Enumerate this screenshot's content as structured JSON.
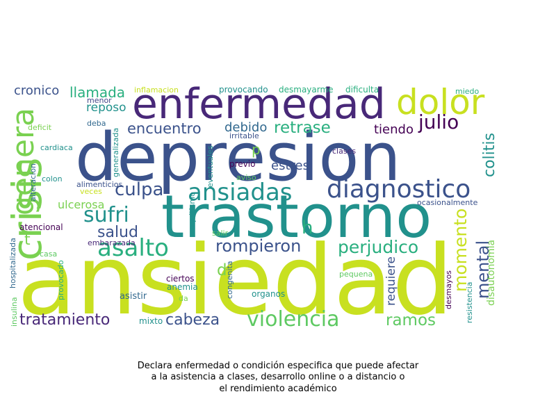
{
  "caption": {
    "line1": "Declara enfermedad o condición especifica que puede afectar",
    "line2": "a la asistencia a clases, desarrollo online o a distancio o",
    "line3": "el rendimiento académico"
  },
  "palette": {
    "navy": "#3b528b",
    "purple": "#482878",
    "dark_purple": "#440154",
    "teal": "#21918c",
    "green": "#5ec962",
    "light_green": "#7ad151",
    "yellow": "#fde725",
    "yellow_green": "#c8e020",
    "slate": "#31688e",
    "cyan": "#29af7f",
    "blue": "#414487"
  },
  "words": [
    {
      "text": "ansiedad",
      "color": "#c8e020"
    },
    {
      "text": "depresion",
      "color": "#3b528b"
    },
    {
      "text": "trastorno",
      "color": "#21918c"
    },
    {
      "text": "enfermedad",
      "color": "#482878"
    },
    {
      "text": "crisis",
      "color": "#7ad151"
    },
    {
      "text": "dolor",
      "color": "#c8e020"
    },
    {
      "text": "genera",
      "color": "#7ad151"
    },
    {
      "text": "diagnostico",
      "color": "#3b528b"
    },
    {
      "text": "ansiadas",
      "color": "#21918c"
    },
    {
      "text": "julio",
      "color": "#440154"
    },
    {
      "text": "violencia",
      "color": "#5ec962"
    },
    {
      "text": "asalto",
      "color": "#29af7f"
    },
    {
      "text": "tratamiento",
      "color": "#482878"
    },
    {
      "text": "cabeza",
      "color": "#3b528b"
    },
    {
      "text": "rompieron",
      "color": "#3b528b"
    },
    {
      "text": "perjudico",
      "color": "#29af7f"
    },
    {
      "text": "sufri",
      "color": "#21918c"
    },
    {
      "text": "encuentro",
      "color": "#3b528b"
    },
    {
      "text": "retrase",
      "color": "#29af7f"
    },
    {
      "text": "momento",
      "color": "#c8e020"
    },
    {
      "text": "mental",
      "color": "#3b528b"
    },
    {
      "text": "ramos",
      "color": "#5ec962"
    },
    {
      "text": "culpa",
      "color": "#3b528b"
    },
    {
      "text": "salud",
      "color": "#3b528b"
    },
    {
      "text": "llamada",
      "color": "#29af7f"
    },
    {
      "text": "cronico",
      "color": "#3b528b"
    },
    {
      "text": "colitis",
      "color": "#21918c"
    },
    {
      "text": "h",
      "color": "#29af7f"
    },
    {
      "text": "d",
      "color": "#7ad151"
    },
    {
      "text": "t",
      "color": "#7ad151"
    },
    {
      "text": "p",
      "color": "#7ad151"
    },
    {
      "text": "debido",
      "color": "#31688e"
    },
    {
      "text": "tiendo",
      "color": "#440154"
    },
    {
      "text": "estres",
      "color": "#3b528b"
    },
    {
      "text": "reposo",
      "color": "#21918c"
    },
    {
      "text": "ulcerosa",
      "color": "#7ad151"
    },
    {
      "text": "requiere",
      "color": "#3b528b"
    },
    {
      "text": "disautonomia",
      "color": "#7ad151"
    },
    {
      "text": "atencional",
      "color": "#440154"
    },
    {
      "text": "hospitalizada",
      "color": "#31688e"
    },
    {
      "text": "alimenticios",
      "color": "#3b528b"
    },
    {
      "text": "generalizada",
      "color": "#21918c"
    },
    {
      "text": "inflamacion",
      "color": "#c8e020"
    },
    {
      "text": "provocando",
      "color": "#21918c"
    },
    {
      "text": "desmayarme",
      "color": "#29af7f"
    },
    {
      "text": "dificulta",
      "color": "#29af7f"
    },
    {
      "text": "miedo",
      "color": "#29af7f"
    },
    {
      "text": "menor",
      "color": "#414487"
    },
    {
      "text": "deba",
      "color": "#31688e"
    },
    {
      "text": "irritable",
      "color": "#3b528b"
    },
    {
      "text": "deficit",
      "color": "#7ad151"
    },
    {
      "text": "cardiaca",
      "color": "#21918c"
    },
    {
      "text": "alteracion",
      "color": "#31688e"
    },
    {
      "text": "colon",
      "color": "#21918c"
    },
    {
      "text": "veces",
      "color": "#c8e020"
    },
    {
      "text": "previo",
      "color": "#440154"
    },
    {
      "text": "aviso",
      "color": "#5ec962"
    },
    {
      "text": "eventuales",
      "color": "#21918c"
    },
    {
      "text": "clases",
      "color": "#482878"
    },
    {
      "text": "ocasionalmente",
      "color": "#3b528b"
    },
    {
      "text": "raquitismo",
      "color": "#21918c"
    },
    {
      "text": "salir",
      "color": "#5ec962"
    },
    {
      "text": "embarazada",
      "color": "#482878"
    },
    {
      "text": "casa",
      "color": "#5ec962"
    },
    {
      "text": "provocado",
      "color": "#29af7f"
    },
    {
      "text": "congenita",
      "color": "#31688e"
    },
    {
      "text": "ciertos",
      "color": "#440154"
    },
    {
      "text": "anemia",
      "color": "#21918c"
    },
    {
      "text": "asistir",
      "color": "#31688e"
    },
    {
      "text": "da",
      "color": "#7ad151"
    },
    {
      "text": "organos",
      "color": "#21918c"
    },
    {
      "text": "pequena",
      "color": "#5ec962"
    },
    {
      "text": "desmayos",
      "color": "#440154"
    },
    {
      "text": "resistencia",
      "color": "#21918c"
    },
    {
      "text": "insulina",
      "color": "#5ec962"
    },
    {
      "text": "mixto",
      "color": "#21918c"
    }
  ]
}
